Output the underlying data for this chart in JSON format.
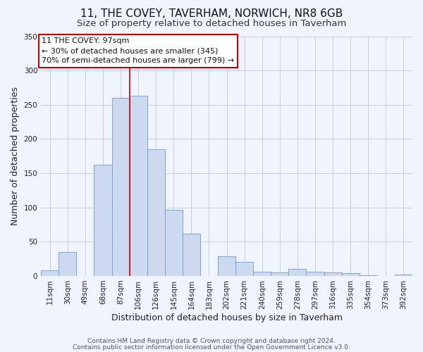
{
  "title": "11, THE COVEY, TAVERHAM, NORWICH, NR8 6GB",
  "subtitle": "Size of property relative to detached houses in Taverham",
  "xlabel": "Distribution of detached houses by size in Taverham",
  "ylabel": "Number of detached properties",
  "bar_color": "#ccd9ee",
  "bar_edge_color": "#7399cc",
  "categories": [
    "11sqm",
    "30sqm",
    "49sqm",
    "68sqm",
    "87sqm",
    "106sqm",
    "126sqm",
    "145sqm",
    "164sqm",
    "183sqm",
    "202sqm",
    "221sqm",
    "240sqm",
    "259sqm",
    "278sqm",
    "297sqm",
    "316sqm",
    "335sqm",
    "354sqm",
    "373sqm",
    "392sqm"
  ],
  "values": [
    8,
    35,
    0,
    162,
    260,
    263,
    185,
    97,
    62,
    0,
    29,
    21,
    6,
    5,
    10,
    6,
    5,
    4,
    1,
    0,
    2
  ],
  "ylim": [
    0,
    350
  ],
  "yticks": [
    0,
    50,
    100,
    150,
    200,
    250,
    300,
    350
  ],
  "property_label": "11 THE COVEY: 97sqm",
  "annotation_line1": "← 30% of detached houses are smaller (345)",
  "annotation_line2": "70% of semi-detached houses are larger (799) →",
  "vline_x": 4.5,
  "vline_color": "#cc0000",
  "footer1": "Contains HM Land Registry data © Crown copyright and database right 2024.",
  "footer2": "Contains public sector information licensed under the Open Government Licence v3.0.",
  "bg_color": "#f0f4ff",
  "grid_color": "#c8cce0",
  "title_fontsize": 11,
  "subtitle_fontsize": 9.5,
  "axis_label_fontsize": 9,
  "tick_fontsize": 7.5,
  "footer_fontsize": 6.5
}
